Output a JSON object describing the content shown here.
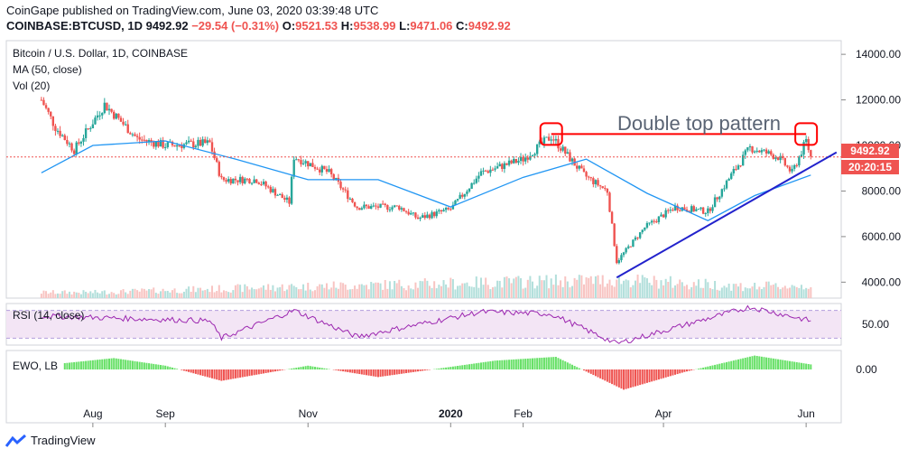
{
  "header": {
    "published": "CoinGape published on TradingView.com, June 03, 2020 03:39:48 UTC",
    "symbol": "COINBASE:BTCUSD, 1D",
    "last": "9492.92",
    "change": "−29.54 (−0.31%)",
    "o_label": "O:",
    "o": "9521.53",
    "h_label": "H:",
    "h": "9538.99",
    "l_label": "L:",
    "l": "9471.06",
    "c_label": "C:",
    "c": "9492.92"
  },
  "legends": {
    "title": "Bitcoin / U.S. Dollar, 1D, COINBASE",
    "ma": "MA (50, close)",
    "vol": "Vol (20)",
    "rsi": "RSI (14, close)",
    "ewo": "EWO, LB"
  },
  "annotation": "Double top pattern",
  "price_label": "9492.92",
  "countdown_label": "20:20:15",
  "footer": {
    "brand": "TradingView"
  },
  "colors": {
    "up": "#26a69a",
    "down": "#ef5350",
    "ma": "#2196f3",
    "trend": "#2222cc",
    "rsi": "#9c27b0",
    "ewo_up": "#66e066",
    "ewo_down": "#ef5350",
    "marker": "#ff0000"
  },
  "chart_data": [
    {
      "type": "candlestick",
      "title": "Bitcoin / U.S. Dollar, 1D, COINBASE",
      "x_ticks": [
        "Aug",
        "Sep",
        "Nov",
        "2020",
        "Feb",
        "Apr",
        "Jun"
      ],
      "y_ticks": [
        4000,
        6000,
        8000,
        10000,
        12000,
        14000
      ],
      "y_tick_labels": [
        "4000.00",
        "6000.00",
        "8000.00",
        "10000.00",
        "12000.00",
        "14000.00"
      ],
      "ylim": [
        3300,
        14600
      ],
      "close_series": [
        {
          "date": "2019-07-10",
          "value": 12000
        },
        {
          "date": "2019-07-16",
          "value": 10800
        },
        {
          "date": "2019-07-24",
          "value": 9800
        },
        {
          "date": "2019-08-06",
          "value": 11800
        },
        {
          "date": "2019-08-20",
          "value": 10300
        },
        {
          "date": "2019-09-01",
          "value": 10000
        },
        {
          "date": "2019-09-20",
          "value": 10100
        },
        {
          "date": "2019-09-25",
          "value": 8500
        },
        {
          "date": "2019-10-10",
          "value": 8500
        },
        {
          "date": "2019-10-24",
          "value": 7500
        },
        {
          "date": "2019-10-26",
          "value": 9500
        },
        {
          "date": "2019-11-10",
          "value": 8800
        },
        {
          "date": "2019-11-22",
          "value": 7300
        },
        {
          "date": "2019-12-10",
          "value": 7300
        },
        {
          "date": "2019-12-18",
          "value": 6800
        },
        {
          "date": "2020-01-01",
          "value": 7200
        },
        {
          "date": "2020-01-14",
          "value": 8800
        },
        {
          "date": "2020-02-01",
          "value": 9400
        },
        {
          "date": "2020-02-13",
          "value": 10400
        },
        {
          "date": "2020-02-27",
          "value": 8700
        },
        {
          "date": "2020-03-08",
          "value": 8000
        },
        {
          "date": "2020-03-12",
          "value": 4900
        },
        {
          "date": "2020-03-24",
          "value": 6400
        },
        {
          "date": "2020-04-06",
          "value": 7300
        },
        {
          "date": "2020-04-20",
          "value": 7100
        },
        {
          "date": "2020-04-30",
          "value": 8700
        },
        {
          "date": "2020-05-08",
          "value": 9900
        },
        {
          "date": "2020-05-20",
          "value": 9500
        },
        {
          "date": "2020-05-26",
          "value": 8800
        },
        {
          "date": "2020-06-01",
          "value": 10200
        },
        {
          "date": "2020-06-03",
          "value": 9492.92
        }
      ],
      "ma50": [
        {
          "date": "2019-07-10",
          "value": 8800
        },
        {
          "date": "2019-08-01",
          "value": 10000
        },
        {
          "date": "2019-09-01",
          "value": 10200
        },
        {
          "date": "2019-10-01",
          "value": 9400
        },
        {
          "date": "2019-11-01",
          "value": 8500
        },
        {
          "date": "2019-12-01",
          "value": 8500
        },
        {
          "date": "2020-01-01",
          "value": 7300
        },
        {
          "date": "2020-02-01",
          "value": 8600
        },
        {
          "date": "2020-02-28",
          "value": 9400
        },
        {
          "date": "2020-03-25",
          "value": 7900
        },
        {
          "date": "2020-04-20",
          "value": 6700
        },
        {
          "date": "2020-05-10",
          "value": 7800
        },
        {
          "date": "2020-06-03",
          "value": 8700
        }
      ],
      "volume": [
        {
          "date": "2019-08-01",
          "value": 0.5
        },
        {
          "date": "2019-10-26",
          "value": 1.0
        },
        {
          "date": "2020-03-12",
          "value": 1.6
        },
        {
          "date": "2020-05-10",
          "value": 1.0
        },
        {
          "date": "2020-06-01",
          "value": 1.1
        }
      ],
      "annotations": [
        {
          "type": "horizontal_line",
          "value": 9492.92,
          "style": "dotted"
        },
        {
          "type": "horizontal_line",
          "value": 10500,
          "from": "2020-02-13",
          "to": "2020-06-01",
          "label": "Double top pattern"
        },
        {
          "type": "marker",
          "date": "2020-02-13",
          "value": 10500
        },
        {
          "type": "marker",
          "date": "2020-06-01",
          "value": 10500
        },
        {
          "type": "trend_line",
          "from": {
            "date": "2020-03-12",
            "value": 4200
          },
          "to": {
            "date": "2020-06-14",
            "value": 9700
          }
        }
      ]
    },
    {
      "type": "line",
      "title": "RSI (14, close)",
      "y_ticks": [
        50
      ],
      "y_tick_labels": [
        "50.00"
      ],
      "ylim": [
        20,
        80
      ],
      "bands": [
        30,
        70
      ],
      "series": [
        {
          "date": "2019-07-10",
          "value": 62
        },
        {
          "date": "2019-09-20",
          "value": 55
        },
        {
          "date": "2019-09-25",
          "value": 30
        },
        {
          "date": "2019-10-26",
          "value": 70
        },
        {
          "date": "2019-11-22",
          "value": 32
        },
        {
          "date": "2020-01-14",
          "value": 68
        },
        {
          "date": "2020-02-13",
          "value": 65
        },
        {
          "date": "2020-03-12",
          "value": 22
        },
        {
          "date": "2020-05-08",
          "value": 75
        },
        {
          "date": "2020-06-03",
          "value": 55
        }
      ]
    },
    {
      "type": "bar",
      "title": "EWO, LB",
      "y_ticks": [
        0
      ],
      "y_tick_labels": [
        "0.00"
      ],
      "series": [
        {
          "date": "2019-07-20",
          "value": 0.5
        },
        {
          "date": "2019-08-10",
          "value": 0.9
        },
        {
          "date": "2019-09-01",
          "value": 0.3
        },
        {
          "date": "2019-09-25",
          "value": -0.9
        },
        {
          "date": "2019-11-01",
          "value": 0.3
        },
        {
          "date": "2019-12-01",
          "value": -0.6
        },
        {
          "date": "2020-01-20",
          "value": 0.7
        },
        {
          "date": "2020-02-15",
          "value": 1.0
        },
        {
          "date": "2020-03-15",
          "value": -1.6
        },
        {
          "date": "2020-04-10",
          "value": -0.2
        },
        {
          "date": "2020-05-10",
          "value": 1.1
        },
        {
          "date": "2020-06-03",
          "value": 0.4
        }
      ]
    }
  ]
}
